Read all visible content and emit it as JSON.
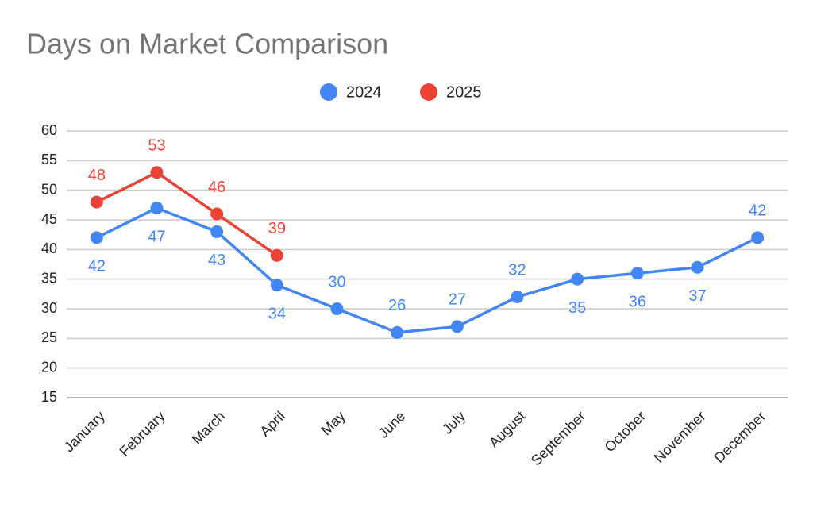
{
  "chart_data": {
    "type": "line",
    "title": "Days on Market Comparison",
    "categories": [
      "January",
      "February",
      "March",
      "April",
      "May",
      "June",
      "July",
      "August",
      "September",
      "October",
      "November",
      "December"
    ],
    "series": [
      {
        "name": "2024",
        "color": "#4285f4",
        "values": [
          42,
          47,
          43,
          34,
          30,
          26,
          27,
          32,
          35,
          36,
          37,
          42
        ]
      },
      {
        "name": "2025",
        "color": "#ea4335",
        "values": [
          48,
          53,
          46,
          39,
          null,
          null,
          null,
          null,
          null,
          null,
          null,
          null
        ]
      }
    ],
    "ylim": [
      15,
      60
    ],
    "yticks": [
      15,
      20,
      25,
      30,
      35,
      40,
      45,
      50,
      55,
      60
    ],
    "grid": true,
    "legend": "top",
    "data_labels": true
  }
}
